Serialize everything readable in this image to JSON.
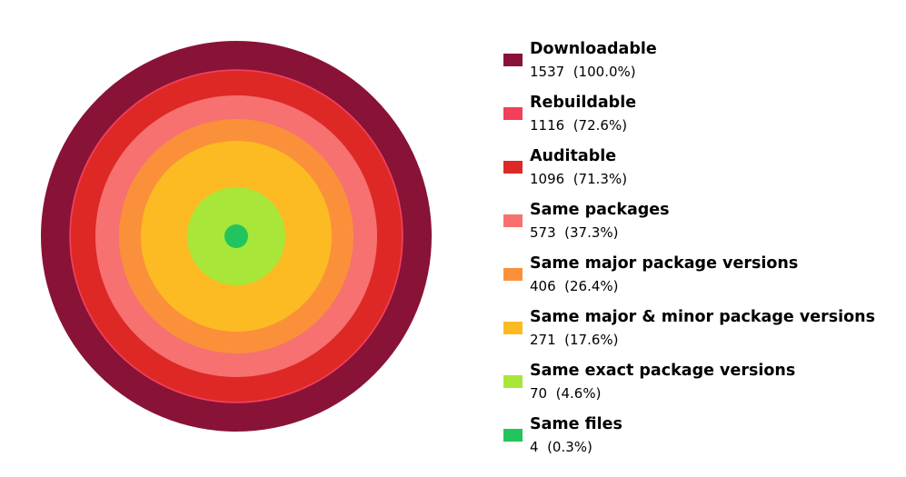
{
  "chart_data": {
    "type": "nested-circles",
    "title": "",
    "legend_position": "right",
    "series": [
      {
        "name": "Downloadable",
        "value": 1537,
        "percent": "100.0%",
        "stat": "1537  (100.0%)",
        "color": "#891237"
      },
      {
        "name": "Rebuildable",
        "value": 1116,
        "percent": "72.6%",
        "stat": "1116  (72.6%)",
        "color": "#f0405a"
      },
      {
        "name": "Auditable",
        "value": 1096,
        "percent": "71.3%",
        "stat": "1096  (71.3%)",
        "color": "#dd2826"
      },
      {
        "name": "Same packages",
        "value": 573,
        "percent": "37.3%",
        "stat": "573  (37.3%)",
        "color": "#f67170"
      },
      {
        "name": "Same major package versions",
        "value": 406,
        "percent": "26.4%",
        "stat": "406  (26.4%)",
        "color": "#fb903b"
      },
      {
        "name": "Same major & minor package versions",
        "value": 271,
        "percent": "17.6%",
        "stat": "271  (17.6%)",
        "color": "#fcbb22"
      },
      {
        "name": "Same exact package versions",
        "value": 70,
        "percent": "4.6%",
        "stat": "70  (4.6%)",
        "color": "#a8e63a"
      },
      {
        "name": "Same files",
        "value": 4,
        "percent": "0.3%",
        "stat": "4  (0.3%)",
        "color": "#22c55d"
      }
    ]
  }
}
